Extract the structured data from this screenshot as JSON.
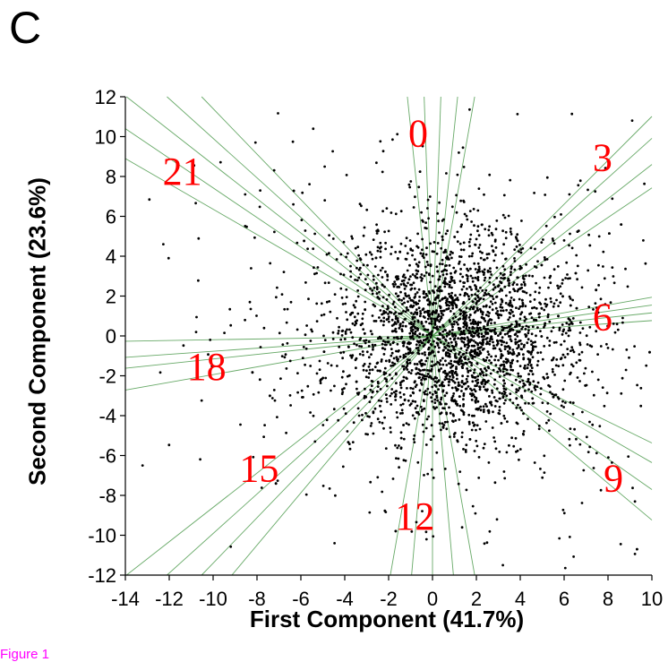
{
  "panel_label": "C",
  "figure_caption": "Figure 1",
  "colors": {
    "points": "#000000",
    "rays": "#4c9a4c",
    "cluster_labels": "#ff0000",
    "caption": "#ff00ff"
  },
  "chart_data": {
    "type": "scatter",
    "xlabel": "First Component (41.7%)",
    "ylabel": "Second Component (23.6%)",
    "xlim": [
      -14,
      10
    ],
    "ylim": [
      -12,
      12
    ],
    "xticks": [
      -14,
      -12,
      -10,
      -8,
      -6,
      -4,
      -2,
      0,
      2,
      4,
      6,
      8,
      10
    ],
    "yticks": [
      -12,
      -10,
      -8,
      -6,
      -4,
      -2,
      0,
      2,
      4,
      6,
      8,
      10,
      12
    ],
    "grid": false,
    "legend": "none",
    "series": [
      {
        "values_description": "dense point cloud centered near (1, 0)",
        "center": [
          1,
          0
        ],
        "spread": [
          2.8,
          2.6
        ],
        "count": 3000
      }
    ],
    "rays": [
      {
        "label": "0",
        "angles_deg": [
          84,
          88,
          92,
          96,
          80
        ]
      },
      {
        "label": "3",
        "angles_deg": [
          34,
          38,
          42,
          45
        ]
      },
      {
        "label": "6",
        "angles_deg": [
          4,
          6,
          8,
          10
        ]
      },
      {
        "label": "9",
        "angles_deg": [
          -26,
          -30,
          -35,
          -40
        ]
      },
      {
        "label": "12",
        "angles_deg": [
          -80,
          -85,
          -90,
          -95,
          -100
        ]
      },
      {
        "label": "15",
        "angles_deg": [
          -130,
          -134,
          -138,
          -142
        ]
      },
      {
        "label": "18",
        "angles_deg": [
          -170,
          -174,
          -176,
          -179
        ]
      },
      {
        "label": "21",
        "angles_deg": [
          150,
          146,
          142,
          138,
          134
        ]
      }
    ],
    "annotations": [
      {
        "text": "0",
        "x": -1.1,
        "y": 9.5
      },
      {
        "text": "3",
        "x": 7.3,
        "y": 8.3
      },
      {
        "text": "6",
        "x": 7.3,
        "y": 0.3
      },
      {
        "text": "9",
        "x": 7.8,
        "y": -7.8
      },
      {
        "text": "12",
        "x": -1.7,
        "y": -9.7
      },
      {
        "text": "15",
        "x": -8.8,
        "y": -7.3
      },
      {
        "text": "18",
        "x": -11.2,
        "y": -2.2
      },
      {
        "text": "21",
        "x": -12.3,
        "y": 7.6
      }
    ]
  }
}
